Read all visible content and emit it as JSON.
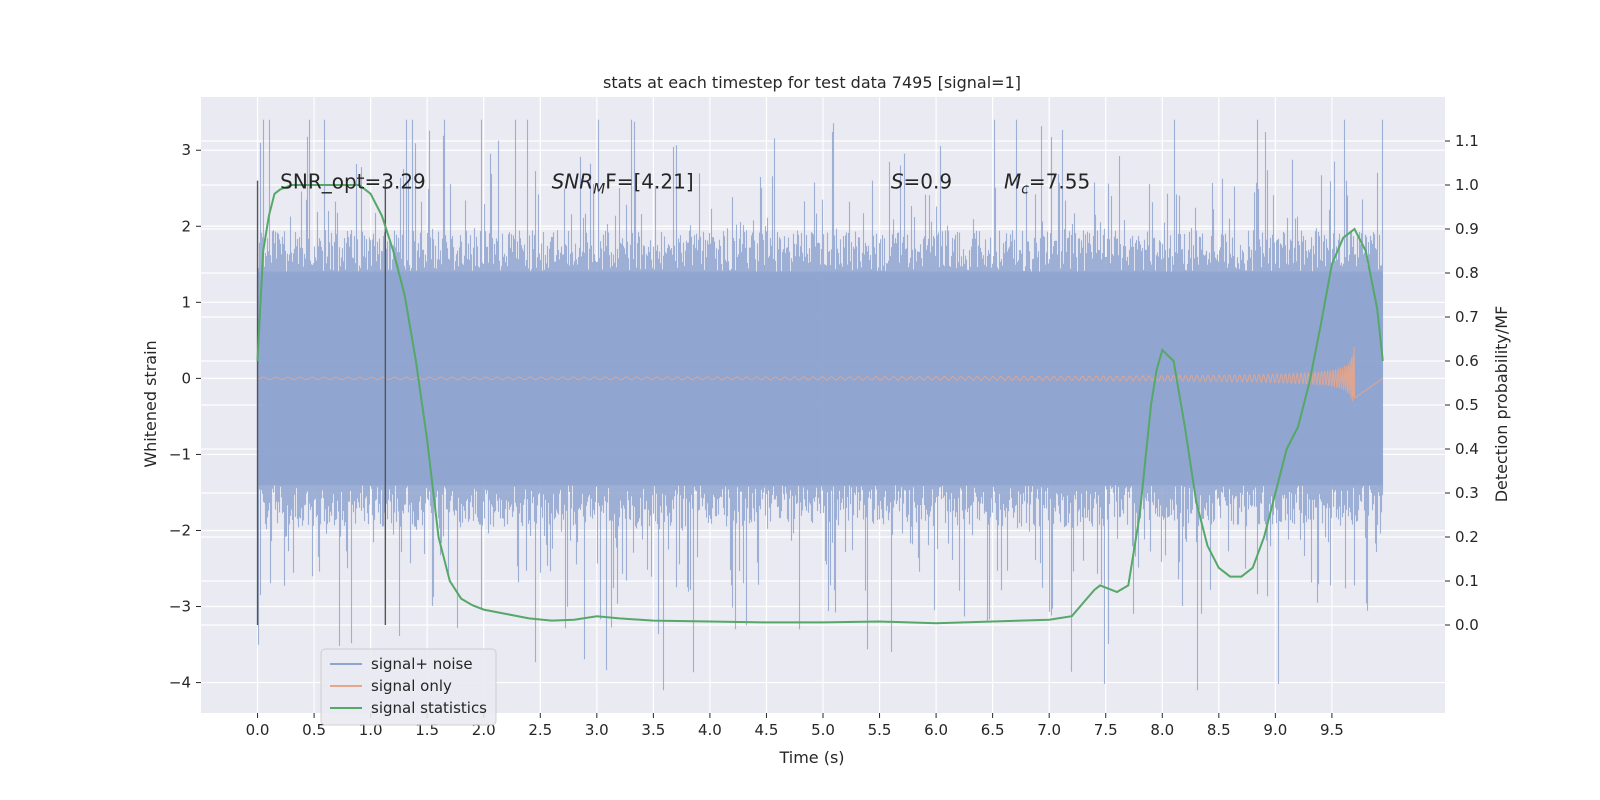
{
  "chart_data": {
    "type": "line",
    "title": "stats at each timestep for test data 7495 [signal=1]",
    "xlabel": "Time (s)",
    "ylabel": "Whitened strain",
    "y2label": "Detection probability/MF",
    "xlim": [
      -0.5,
      10.5
    ],
    "ylim": [
      -4.4,
      3.7
    ],
    "y2lim": [
      -0.2,
      1.2
    ],
    "x_ticks": [
      "0.0",
      "0.5",
      "1.0",
      "1.5",
      "2.0",
      "2.5",
      "3.0",
      "3.5",
      "4.0",
      "4.5",
      "5.0",
      "5.5",
      "6.0",
      "6.5",
      "7.0",
      "7.5",
      "8.0",
      "8.5",
      "9.0",
      "9.5"
    ],
    "y_ticks": [
      "3",
      "2",
      "1",
      "0",
      "−1",
      "−2",
      "−3",
      "−4"
    ],
    "y2_ticks": [
      "1.1",
      "1.0",
      "0.9",
      "0.8",
      "0.7",
      "0.6",
      "0.5",
      "0.4",
      "0.3",
      "0.2",
      "0.1",
      "0.0"
    ],
    "grid": true,
    "legend_placement": "lower-left",
    "colors": {
      "noise": "#8fa4cf",
      "signal": "#e5a68c",
      "stats": "#55a868",
      "plot_bg": "#eaeaf2",
      "vline": "#555555"
    },
    "annotations": [
      {
        "x": 0.2,
        "y": 2.6,
        "text": "SNR_opt=3.29"
      },
      {
        "x": 2.6,
        "y": 2.6,
        "text": "SNR_MF=[4.21]",
        "base": "SNR",
        "sub": "M",
        "rest": "F=[4.21]"
      },
      {
        "x": 5.6,
        "y": 2.6,
        "text": "S=0.9",
        "base": "S",
        "rest": "=0.9"
      },
      {
        "x": 6.6,
        "y": 2.6,
        "text": "M_c=7.55",
        "base": "M",
        "sub": "c",
        "rest": "=7.55"
      }
    ],
    "vlines": [
      0.0,
      1.13
    ],
    "series": [
      {
        "name": "signal+ noise",
        "style": "noise-band",
        "x_range": [
          0.0,
          9.95
        ],
        "envelope": 1.95
      },
      {
        "name": "signal only",
        "style": "chirp",
        "x_range": [
          0.0,
          9.7
        ],
        "peak_amplitude": 0.45
      },
      {
        "name": "signal statistics",
        "axis": "right",
        "x": [
          0.0,
          0.05,
          0.1,
          0.15,
          0.2,
          0.3,
          0.4,
          0.5,
          0.6,
          0.7,
          0.8,
          0.9,
          1.0,
          1.1,
          1.2,
          1.3,
          1.4,
          1.5,
          1.6,
          1.7,
          1.8,
          1.9,
          2.0,
          2.2,
          2.4,
          2.6,
          2.8,
          3.0,
          3.2,
          3.5,
          4.0,
          4.5,
          5.0,
          5.5,
          6.0,
          6.5,
          7.0,
          7.2,
          7.3,
          7.4,
          7.45,
          7.5,
          7.6,
          7.7,
          7.8,
          7.9,
          7.95,
          8.0,
          8.1,
          8.2,
          8.3,
          8.4,
          8.5,
          8.6,
          8.7,
          8.8,
          8.9,
          9.0,
          9.1,
          9.2,
          9.3,
          9.4,
          9.5,
          9.6,
          9.7,
          9.8,
          9.9,
          9.95
        ],
        "y": [
          0.6,
          0.85,
          0.93,
          0.98,
          0.99,
          1.0,
          1.0,
          1.0,
          1.0,
          1.0,
          1.0,
          1.0,
          0.98,
          0.93,
          0.85,
          0.75,
          0.6,
          0.42,
          0.2,
          0.1,
          0.06,
          0.045,
          0.035,
          0.025,
          0.015,
          0.01,
          0.012,
          0.02,
          0.015,
          0.01,
          0.008,
          0.006,
          0.006,
          0.008,
          0.004,
          0.008,
          0.012,
          0.02,
          0.05,
          0.08,
          0.09,
          0.085,
          0.075,
          0.09,
          0.25,
          0.5,
          0.58,
          0.625,
          0.6,
          0.45,
          0.28,
          0.18,
          0.13,
          0.11,
          0.11,
          0.13,
          0.2,
          0.3,
          0.4,
          0.45,
          0.55,
          0.68,
          0.82,
          0.88,
          0.9,
          0.85,
          0.72,
          0.6
        ]
      }
    ],
    "legend": [
      "signal+ noise",
      "signal only",
      "signal statistics"
    ]
  }
}
